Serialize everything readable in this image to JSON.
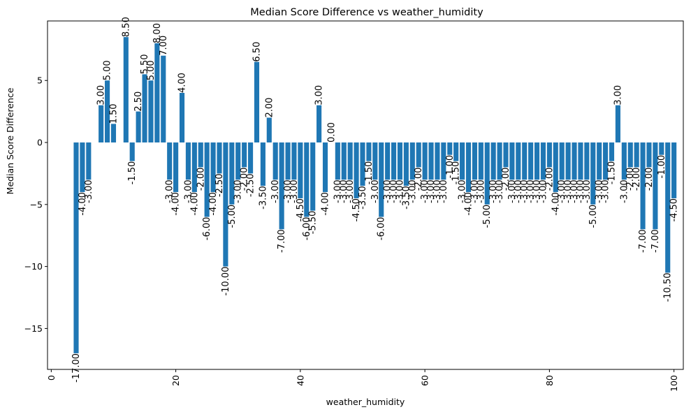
{
  "chart_data": {
    "type": "bar",
    "title": "Median Score Difference vs weather_humidity",
    "xlabel": "weather_humidity",
    "ylabel": "Median Score Difference",
    "xlim": [
      -0.6,
      101.5
    ],
    "ylim": [
      -18.3,
      9.8
    ],
    "xticks": [
      0,
      20,
      40,
      60,
      80,
      100
    ],
    "yticks": [
      -15,
      -10,
      -5,
      0,
      5
    ],
    "xtick_rotation": 90,
    "grid": false,
    "legend": "none",
    "bar_color": "#1f77b4",
    "bars": [
      {
        "x": 4,
        "y": -17.0,
        "label": "-17.00"
      },
      {
        "x": 5,
        "y": -4.0,
        "label": "-4.00"
      },
      {
        "x": 6,
        "y": -3.0,
        "label": "-3.00"
      },
      {
        "x": 8,
        "y": 3.0,
        "label": "3.00"
      },
      {
        "x": 9,
        "y": 5.0,
        "label": "5.00"
      },
      {
        "x": 10,
        "y": 1.5,
        "label": "1.50"
      },
      {
        "x": 12,
        "y": 8.5,
        "label": "8.50"
      },
      {
        "x": 13,
        "y": -1.5,
        "label": "-1.50"
      },
      {
        "x": 14,
        "y": 2.5,
        "label": "2.50"
      },
      {
        "x": 15,
        "y": 5.5,
        "label": "5.50"
      },
      {
        "x": 16,
        "y": 5.0,
        "label": "5.00"
      },
      {
        "x": 17,
        "y": 8.0,
        "label": "8.00"
      },
      {
        "x": 18,
        "y": 7.0,
        "label": "7.00"
      },
      {
        "x": 19,
        "y": -3.0,
        "label": "-3.00"
      },
      {
        "x": 20,
        "y": -4.0,
        "label": "-4.00"
      },
      {
        "x": 21,
        "y": 4.0,
        "label": "4.00"
      },
      {
        "x": 22,
        "y": -3.0,
        "label": "-3.00"
      },
      {
        "x": 23,
        "y": -4.0,
        "label": "-4.00"
      },
      {
        "x": 24,
        "y": -2.0,
        "label": "-2.00"
      },
      {
        "x": 25,
        "y": -6.0,
        "label": "-6.00"
      },
      {
        "x": 26,
        "y": -4.0,
        "label": "-4.00"
      },
      {
        "x": 27,
        "y": -2.5,
        "label": "-2.50"
      },
      {
        "x": 28,
        "y": -10.0,
        "label": "-10.00"
      },
      {
        "x": 29,
        "y": -5.0,
        "label": "-5.00"
      },
      {
        "x": 30,
        "y": -3.0,
        "label": "-3.00"
      },
      {
        "x": 31,
        "y": -2.0,
        "label": "-2.00"
      },
      {
        "x": 32,
        "y": -2.5,
        "label": "-2.50"
      },
      {
        "x": 33,
        "y": 6.5,
        "label": "6.50"
      },
      {
        "x": 34,
        "y": -3.5,
        "label": "-3.50"
      },
      {
        "x": 35,
        "y": 2.0,
        "label": "2.00"
      },
      {
        "x": 36,
        "y": -3.0,
        "label": "-3.00"
      },
      {
        "x": 37,
        "y": -7.0,
        "label": "-7.00"
      },
      {
        "x": 38,
        "y": -3.0,
        "label": "-3.00"
      },
      {
        "x": 39,
        "y": -3.0,
        "label": "-3.00"
      },
      {
        "x": 40,
        "y": -4.5,
        "label": "-4.50"
      },
      {
        "x": 41,
        "y": -6.0,
        "label": "-6.00"
      },
      {
        "x": 42,
        "y": -5.5,
        "label": "-5.50"
      },
      {
        "x": 43,
        "y": 3.0,
        "label": "3.00"
      },
      {
        "x": 44,
        "y": -4.0,
        "label": "-4.00"
      },
      {
        "x": 45,
        "y": 0.0,
        "label": "0.00"
      },
      {
        "x": 46,
        "y": -3.0,
        "label": "-3.00"
      },
      {
        "x": 47,
        "y": -3.0,
        "label": "-3.00"
      },
      {
        "x": 48,
        "y": -3.0,
        "label": "-3.00"
      },
      {
        "x": 49,
        "y": -4.5,
        "label": "-4.50"
      },
      {
        "x": 50,
        "y": -3.5,
        "label": "-3.50"
      },
      {
        "x": 51,
        "y": -1.5,
        "label": "-1.50"
      },
      {
        "x": 52,
        "y": -3.0,
        "label": "-3.00"
      },
      {
        "x": 53,
        "y": -6.0,
        "label": "-6.00"
      },
      {
        "x": 54,
        "y": -3.0,
        "label": "-3.00"
      },
      {
        "x": 55,
        "y": -3.0,
        "label": "-3.00"
      },
      {
        "x": 56,
        "y": -3.0,
        "label": "-3.00"
      },
      {
        "x": 57,
        "y": -3.5,
        "label": "-3.50"
      },
      {
        "x": 58,
        "y": -3.0,
        "label": "-3.00"
      },
      {
        "x": 59,
        "y": -2.0,
        "label": "-2.00"
      },
      {
        "x": 60,
        "y": -3.0,
        "label": "-3.00"
      },
      {
        "x": 61,
        "y": -3.0,
        "label": "-3.00"
      },
      {
        "x": 62,
        "y": -3.0,
        "label": "-3.00"
      },
      {
        "x": 63,
        "y": -3.0,
        "label": "-3.00"
      },
      {
        "x": 64,
        "y": -1.0,
        "label": "-1.00"
      },
      {
        "x": 65,
        "y": -1.5,
        "label": "-1.50"
      },
      {
        "x": 66,
        "y": -3.0,
        "label": "-3.00"
      },
      {
        "x": 67,
        "y": -4.0,
        "label": "-4.00"
      },
      {
        "x": 68,
        "y": -3.0,
        "label": "-3.00"
      },
      {
        "x": 69,
        "y": -3.0,
        "label": "-3.00"
      },
      {
        "x": 70,
        "y": -5.0,
        "label": "-5.00"
      },
      {
        "x": 71,
        "y": -3.0,
        "label": "-3.00"
      },
      {
        "x": 72,
        "y": -3.0,
        "label": "-3.00"
      },
      {
        "x": 73,
        "y": -2.0,
        "label": "-2.00"
      },
      {
        "x": 74,
        "y": -3.0,
        "label": "-3.00"
      },
      {
        "x": 75,
        "y": -3.0,
        "label": "-3.00"
      },
      {
        "x": 76,
        "y": -3.0,
        "label": "-3.00"
      },
      {
        "x": 77,
        "y": -3.0,
        "label": "-3.00"
      },
      {
        "x": 78,
        "y": -3.0,
        "label": "-3.00"
      },
      {
        "x": 79,
        "y": -3.0,
        "label": "-3.00"
      },
      {
        "x": 80,
        "y": -2.0,
        "label": "-2.00"
      },
      {
        "x": 81,
        "y": -4.0,
        "label": "-4.00"
      },
      {
        "x": 82,
        "y": -3.0,
        "label": "-3.00"
      },
      {
        "x": 83,
        "y": -3.0,
        "label": "-3.00"
      },
      {
        "x": 84,
        "y": -3.0,
        "label": "-3.00"
      },
      {
        "x": 85,
        "y": -3.0,
        "label": "-3.00"
      },
      {
        "x": 86,
        "y": -3.0,
        "label": "-3.00"
      },
      {
        "x": 87,
        "y": -5.0,
        "label": "-5.00"
      },
      {
        "x": 88,
        "y": -3.0,
        "label": "-3.00"
      },
      {
        "x": 89,
        "y": -3.0,
        "label": "-3.00"
      },
      {
        "x": 90,
        "y": -1.5,
        "label": "-1.50"
      },
      {
        "x": 91,
        "y": 3.0,
        "label": "3.00"
      },
      {
        "x": 92,
        "y": -3.0,
        "label": "-3.00"
      },
      {
        "x": 93,
        "y": -2.0,
        "label": "-2.00"
      },
      {
        "x": 94,
        "y": -2.0,
        "label": "-2.00"
      },
      {
        "x": 95,
        "y": -7.0,
        "label": "-7.00"
      },
      {
        "x": 96,
        "y": -2.0,
        "label": "-2.00"
      },
      {
        "x": 97,
        "y": -7.0,
        "label": "-7.00"
      },
      {
        "x": 98,
        "y": -1.0,
        "label": "-1.00"
      },
      {
        "x": 99,
        "y": -10.5,
        "label": "-10.50"
      },
      {
        "x": 100,
        "y": -4.5,
        "label": "-4.50"
      }
    ]
  }
}
